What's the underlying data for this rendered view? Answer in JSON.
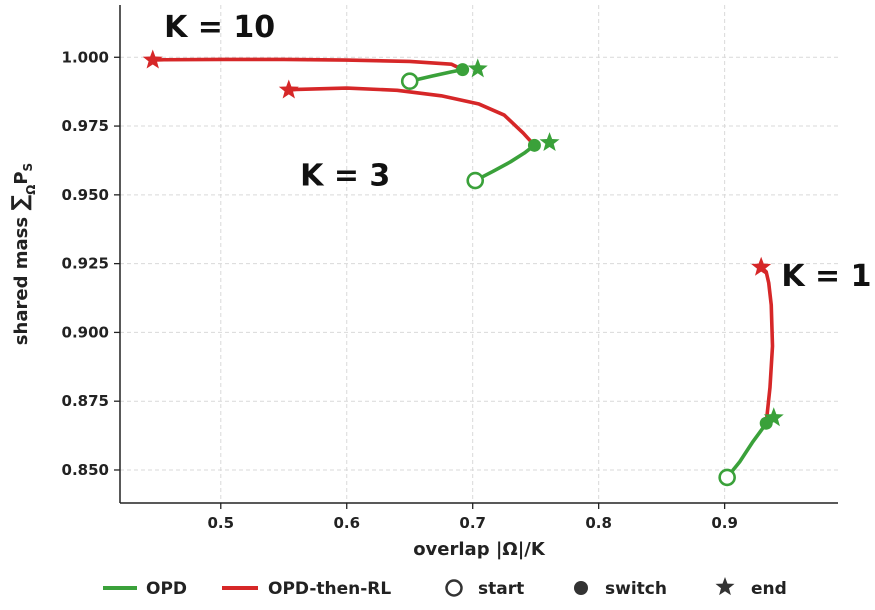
{
  "chart_data": {
    "type": "line",
    "xlabel": "overlap |Ω|/K",
    "ylabel_text": "shared mass ",
    "ylabel_sum": "∑",
    "ylabel_sub": "Ω",
    "ylabel_p": "P",
    "ylabel_ps": "S",
    "xlim": [
      0.42,
      0.99
    ],
    "ylim": [
      0.838,
      1.019
    ],
    "xticks": [
      0.5,
      0.6,
      0.7,
      0.8,
      0.9
    ],
    "yticks": [
      0.85,
      0.875,
      0.9,
      0.925,
      0.95,
      0.975,
      1.0
    ],
    "xtick_labels": [
      "0.5",
      "0.6",
      "0.7",
      "0.8",
      "0.9"
    ],
    "ytick_labels": [
      "0.850",
      "0.875",
      "0.900",
      "0.925",
      "0.950",
      "0.975",
      "1.000"
    ],
    "grid": true,
    "colors": {
      "OPD": "#3aa13a",
      "OPD-then-RL": "#d62728",
      "marker": "#333333"
    },
    "annotations": [
      {
        "text": "K = 10",
        "x": 0.455,
        "y": 1.011
      },
      {
        "text": "K = 3",
        "x": 0.563,
        "y": 0.957
      },
      {
        "text": "K = 1",
        "x": 0.945,
        "y": 0.9205
      }
    ],
    "series": [
      {
        "name": "OPD",
        "K": 10,
        "x": [
          0.65,
          0.668,
          0.683,
          0.692
        ],
        "y": [
          0.9913,
          0.9932,
          0.9947,
          0.9955
        ],
        "start": [
          0.65,
          0.9913
        ],
        "switch": [
          0.692,
          0.9955
        ],
        "end": [
          0.704,
          0.9958
        ]
      },
      {
        "name": "OPD-then-RL",
        "K": 10,
        "x": [
          0.692,
          0.683,
          0.65,
          0.6,
          0.55,
          0.5,
          0.455,
          0.446
        ],
        "y": [
          0.9955,
          0.9975,
          0.9985,
          0.999,
          0.9992,
          0.9992,
          0.9991,
          0.999
        ],
        "end": [
          0.446,
          0.999
        ]
      },
      {
        "name": "OPD",
        "K": 3,
        "x": [
          0.702,
          0.716,
          0.73,
          0.741,
          0.749
        ],
        "y": [
          0.9552,
          0.9585,
          0.962,
          0.9652,
          0.968
        ],
        "start": [
          0.702,
          0.9552
        ],
        "switch": [
          0.749,
          0.968
        ],
        "end": [
          0.761,
          0.969
        ]
      },
      {
        "name": "OPD-then-RL",
        "K": 3,
        "x": [
          0.749,
          0.74,
          0.725,
          0.705,
          0.675,
          0.64,
          0.6,
          0.56,
          0.554
        ],
        "y": [
          0.968,
          0.9725,
          0.979,
          0.983,
          0.986,
          0.988,
          0.9888,
          0.9883,
          0.9881
        ],
        "end": [
          0.554,
          0.9881
        ]
      },
      {
        "name": "OPD",
        "K": 1,
        "x": [
          0.902,
          0.912,
          0.922,
          0.93,
          0.933
        ],
        "y": [
          0.8473,
          0.853,
          0.86,
          0.865,
          0.867
        ],
        "start": [
          0.902,
          0.8473
        ],
        "switch": [
          0.933,
          0.867
        ],
        "end": [
          0.939,
          0.869
        ]
      },
      {
        "name": "OPD-then-RL",
        "K": 1,
        "x": [
          0.933,
          0.936,
          0.938,
          0.937,
          0.935,
          0.933,
          0.929
        ],
        "y": [
          0.867,
          0.88,
          0.895,
          0.91,
          0.918,
          0.922,
          0.9237
        ],
        "end": [
          0.929,
          0.9237
        ]
      }
    ],
    "legend": {
      "placement": "bottom",
      "items": [
        {
          "label": "OPD",
          "kind": "line-green"
        },
        {
          "label": "OPD-then-RL",
          "kind": "line-red"
        },
        {
          "label": "start",
          "kind": "open-circle"
        },
        {
          "label": "switch",
          "kind": "filled-circle"
        },
        {
          "label": "end",
          "kind": "star"
        }
      ]
    }
  }
}
